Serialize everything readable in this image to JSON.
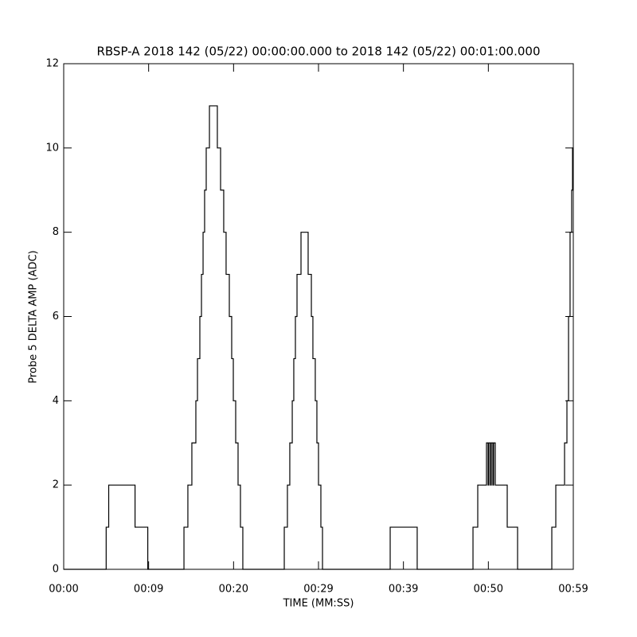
{
  "chart_data": {
    "type": "line",
    "step": "post",
    "title": "RBSP-A 2018 142 (05/22) 00:00:00.000 to 2018 142 (05/22) 00:01:00.000",
    "xlabel": "TIME (MM:SS)",
    "ylabel": "Probe 5 DELTA AMP (ADC)",
    "xlim": [
      0,
      60
    ],
    "ylim": [
      0,
      12
    ],
    "xticks": [
      {
        "value": 0,
        "label": "00:00"
      },
      {
        "value": 10,
        "label": "00:09"
      },
      {
        "value": 20,
        "label": "00:20"
      },
      {
        "value": 30,
        "label": "00:29"
      },
      {
        "value": 40,
        "label": "00:39"
      },
      {
        "value": 50,
        "label": "00:50"
      },
      {
        "value": 60,
        "label": "00:59"
      }
    ],
    "yticks": [
      0,
      2,
      4,
      6,
      8,
      10,
      12
    ],
    "color": "#000000",
    "x": [
      0,
      5.0,
      5.3,
      8.4,
      9.9,
      14.16,
      14.62,
      15.09,
      15.56,
      15.75,
      16.03,
      16.22,
      16.41,
      16.59,
      16.78,
      17.16,
      18.09,
      18.47,
      18.84,
      19.12,
      19.5,
      19.78,
      19.97,
      20.25,
      20.53,
      20.81,
      21.09,
      25.97,
      26.34,
      26.62,
      26.91,
      27.09,
      27.28,
      27.47,
      27.94,
      28.78,
      29.16,
      29.34,
      29.62,
      29.81,
      30.0,
      30.28,
      30.47,
      38.44,
      41.62,
      48.19,
      48.75,
      49.78,
      49.97,
      50.06,
      50.25,
      50.34,
      50.53,
      50.62,
      50.81,
      52.22,
      53.44,
      57.47,
      57.94,
      58.97,
      59.25,
      59.44,
      59.62,
      59.81,
      59.91
    ],
    "values": [
      0,
      1,
      2,
      1,
      0,
      1,
      2,
      3,
      4,
      5,
      6,
      7,
      8,
      9,
      10,
      11,
      10,
      9,
      8,
      7,
      6,
      5,
      4,
      3,
      2,
      1,
      0,
      1,
      2,
      3,
      4,
      5,
      6,
      7,
      8,
      7,
      6,
      5,
      4,
      3,
      2,
      1,
      0,
      1,
      0,
      1,
      2,
      3,
      2,
      3,
      2,
      3,
      2,
      3,
      2,
      1,
      0,
      1,
      2,
      3,
      4,
      6,
      8,
      9,
      10
    ]
  }
}
